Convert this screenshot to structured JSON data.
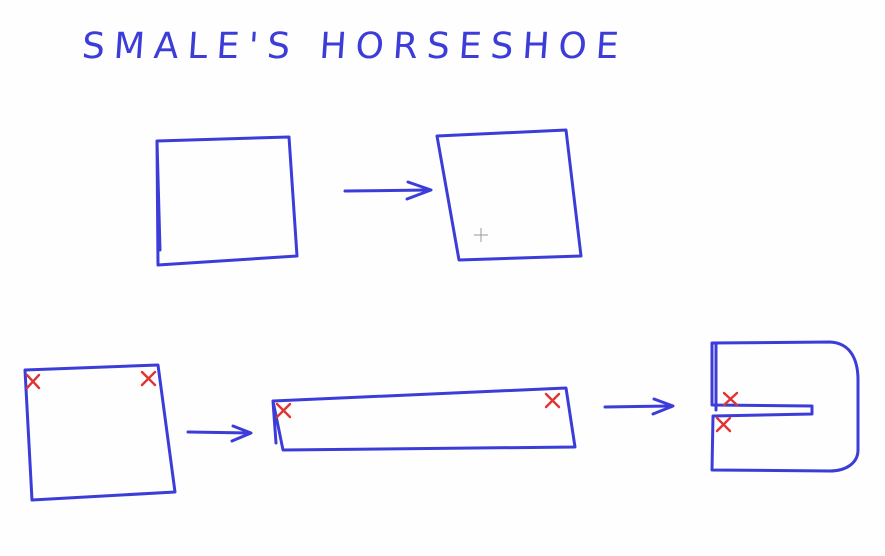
{
  "diagram": {
    "title": "SMALE'S HORSESHOE",
    "ink_color": "#3c3cd8",
    "marker_color": "#e03434",
    "rows": [
      {
        "name": "top-row",
        "steps": [
          "square",
          "arrow",
          "stretched-square"
        ]
      },
      {
        "name": "bottom-row",
        "steps": [
          "square-with-corner-marks",
          "arrow",
          "stretched-strip-with-marks",
          "arrow",
          "folded-horseshoe-with-marks"
        ]
      }
    ],
    "corner_mark_symbol": "×"
  }
}
